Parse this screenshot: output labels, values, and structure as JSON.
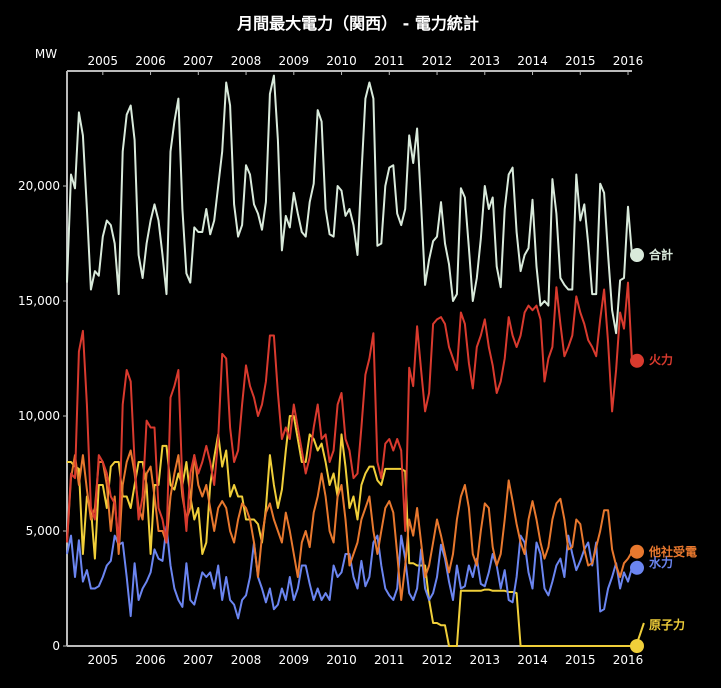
{
  "chart_data": {
    "type": "line",
    "title": "月間最大電力（関西） - 電力統計",
    "ylabel": "MW",
    "xlabel": "",
    "ylim": [
      0,
      25000
    ],
    "start_month": "2004-04",
    "frequency": "monthly",
    "x_ticks": [
      "2005",
      "2006",
      "2007",
      "2008",
      "2009",
      "2010",
      "2011",
      "2012",
      "2013",
      "2014",
      "2015",
      "2016"
    ],
    "y_ticks": [
      0,
      5000,
      10000,
      15000,
      20000
    ],
    "y_tick_labels": [
      "0",
      "5,000",
      "10,000",
      "15,000",
      "20,000"
    ],
    "grid": false,
    "legend_placement": "line-end labels at right",
    "series": [
      {
        "name": "合計",
        "color": "#d9eadb",
        "values_thousands": [
          15.8,
          20.5,
          19.9,
          23.2,
          22.2,
          19.0,
          15.5,
          16.3,
          16.1,
          17.8,
          18.5,
          18.3,
          17.5,
          15.3,
          21.5,
          23.1,
          23.5,
          22.0,
          17.0,
          16.0,
          17.5,
          18.5,
          19.2,
          18.5,
          17.0,
          15.3,
          21.5,
          22.8,
          23.8,
          19.0,
          16.2,
          15.8,
          18.2,
          18.0,
          18.0,
          19.0,
          17.9,
          18.5,
          20.0,
          21.5,
          24.5,
          23.5,
          19.2,
          17.8,
          18.3,
          20.9,
          20.5,
          19.2,
          18.8,
          18.1,
          19.3,
          24.0,
          24.8,
          22.0,
          17.2,
          18.7,
          18.2,
          19.7,
          18.8,
          18.0,
          17.8,
          19.3,
          20.1,
          23.3,
          22.8,
          19.0,
          17.9,
          17.8,
          20.0,
          19.8,
          18.7,
          19.0,
          18.3,
          17.0,
          20.5,
          23.8,
          24.5,
          23.8,
          17.4,
          17.5,
          20.0,
          20.8,
          20.9,
          18.8,
          18.3,
          19.0,
          22.2,
          21.0,
          22.5,
          19.2,
          15.7,
          16.8,
          17.6,
          17.8,
          19.3,
          17.5,
          16.6,
          15.0,
          15.3,
          19.9,
          19.5,
          17.3,
          15.0,
          16.0,
          17.7,
          20.0,
          19.0,
          19.5,
          16.5,
          15.6,
          19.0,
          20.5,
          20.8,
          18.0,
          16.3,
          17.0,
          17.3,
          19.4,
          16.5,
          14.8,
          15.0,
          14.8,
          20.3,
          18.8,
          16.0,
          15.7,
          15.5,
          15.5,
          20.5,
          18.5,
          19.2,
          17.5,
          15.3,
          15.3,
          20.1,
          19.7,
          17.0,
          14.6,
          13.6,
          15.9,
          16.0,
          19.1,
          17.0
        ]
      },
      {
        "name": "火力",
        "color": "#d93a2e",
        "values_thousands": [
          4.5,
          7.5,
          7.3,
          12.8,
          13.7,
          10.5,
          6.0,
          5.5,
          8.3,
          8.0,
          7.5,
          6.5,
          6.2,
          4.5,
          10.5,
          12.0,
          11.5,
          8.0,
          5.5,
          6.5,
          9.8,
          9.5,
          9.5,
          6.0,
          5.5,
          4.5,
          10.8,
          11.3,
          12.0,
          7.0,
          5.0,
          7.5,
          8.3,
          7.5,
          8.0,
          8.7,
          8.0,
          7.0,
          9.0,
          12.7,
          12.5,
          9.5,
          8.0,
          8.5,
          10.5,
          12.2,
          11.3,
          10.8,
          10.0,
          10.5,
          11.5,
          13.5,
          13.5,
          11.0,
          9.0,
          9.5,
          9.0,
          10.5,
          9.5,
          8.5,
          7.5,
          8.2,
          9.5,
          10.5,
          9.0,
          9.2,
          8.0,
          8.5,
          10.5,
          11.0,
          9.0,
          8.5,
          7.3,
          7.5,
          9.5,
          11.8,
          12.5,
          13.6,
          8.0,
          7.3,
          8.8,
          9.0,
          8.5,
          9.0,
          8.5,
          5.0,
          12.1,
          11.3,
          13.9,
          12.0,
          10.2,
          11.0,
          14.0,
          14.2,
          14.3,
          14.0,
          13.0,
          12.5,
          12.0,
          14.5,
          14.0,
          12.3,
          11.2,
          13.0,
          13.5,
          14.2,
          13.0,
          12.2,
          11.0,
          11.5,
          12.5,
          14.3,
          13.5,
          13.0,
          13.5,
          14.5,
          14.8,
          14.6,
          14.8,
          14.2,
          11.5,
          12.5,
          13.0,
          15.6,
          14.0,
          12.6,
          13.0,
          13.5,
          15.2,
          14.5,
          14.0,
          13.3,
          13.0,
          12.6,
          14.2,
          15.5,
          13.2,
          10.2,
          12.0,
          14.5,
          13.8,
          15.8,
          12.4
        ]
      },
      {
        "name": "他社受電",
        "color": "#e8782e",
        "values_thousands": [
          4.5,
          7.3,
          8.3,
          7.0,
          8.3,
          6.8,
          5.5,
          6.0,
          8.0,
          8.0,
          7.0,
          5.0,
          6.5,
          4.0,
          7.0,
          8.0,
          8.5,
          7.5,
          6.0,
          5.5,
          7.5,
          7.8,
          6.5,
          5.0,
          5.0,
          4.5,
          6.5,
          7.5,
          8.3,
          6.5,
          5.5,
          6.0,
          8.3,
          7.0,
          6.5,
          7.0,
          6.0,
          5.0,
          6.0,
          6.3,
          6.0,
          5.0,
          4.5,
          5.5,
          6.2,
          6.0,
          5.5,
          4.5,
          3.0,
          4.8,
          5.8,
          6.2,
          5.5,
          5.0,
          4.5,
          5.8,
          5.0,
          4.0,
          3.0,
          4.5,
          5.0,
          4.3,
          5.8,
          6.5,
          7.5,
          6.5,
          5.0,
          4.5,
          6.5,
          7.0,
          5.5,
          3.5,
          4.0,
          4.5,
          5.5,
          6.0,
          6.5,
          5.0,
          4.0,
          5.0,
          6.0,
          6.3,
          5.8,
          4.0,
          2.0,
          3.5,
          5.5,
          4.8,
          6.0,
          4.5,
          3.0,
          3.5,
          4.5,
          5.5,
          4.8,
          4.0,
          3.2,
          4.0,
          5.5,
          6.5,
          7.0,
          6.0,
          4.0,
          3.5,
          5.0,
          6.2,
          6.0,
          4.3,
          3.5,
          4.0,
          5.5,
          7.2,
          6.3,
          5.3,
          4.5,
          4.0,
          5.5,
          6.3,
          5.5,
          4.5,
          3.8,
          4.3,
          5.5,
          6.2,
          6.4,
          5.5,
          4.2,
          4.3,
          5.5,
          5.3,
          4.2,
          3.5,
          3.6,
          4.3,
          5.0,
          5.9,
          5.9,
          4.2,
          3.5,
          3.0,
          3.6,
          3.8,
          4.1
        ]
      },
      {
        "name": "水力",
        "color": "#6b85f0",
        "values_thousands": [
          4.0,
          4.8,
          3.0,
          4.6,
          2.8,
          3.3,
          2.5,
          2.5,
          2.6,
          3.0,
          3.5,
          3.7,
          4.8,
          4.4,
          4.5,
          3.0,
          1.3,
          3.6,
          2.0,
          2.5,
          2.8,
          3.2,
          4.2,
          3.8,
          3.7,
          5.2,
          3.5,
          2.5,
          2.0,
          1.7,
          3.6,
          2.0,
          1.8,
          2.5,
          3.2,
          3.0,
          3.2,
          2.5,
          3.5,
          2.0,
          3.0,
          2.0,
          1.8,
          1.2,
          2.0,
          2.2,
          3.0,
          4.5,
          3.0,
          2.5,
          1.9,
          2.5,
          1.6,
          1.8,
          2.5,
          2.0,
          3.0,
          2.0,
          2.5,
          3.5,
          3.5,
          2.7,
          2.0,
          2.5,
          2.0,
          2.3,
          2.0,
          3.5,
          3.0,
          3.2,
          4.0,
          4.0,
          3.0,
          2.5,
          3.7,
          2.6,
          3.0,
          4.5,
          4.8,
          3.5,
          2.5,
          2.2,
          2.0,
          2.5,
          4.8,
          3.8,
          2.3,
          2.0,
          2.5,
          4.2,
          2.5,
          2.0,
          2.3,
          3.0,
          4.4,
          3.8,
          2.8,
          2.0,
          3.5,
          2.5,
          2.6,
          3.5,
          3.0,
          3.8,
          2.7,
          2.6,
          3.2,
          4.0,
          3.5,
          2.5,
          3.3,
          2.0,
          1.9,
          3.0,
          4.8,
          4.5,
          3.2,
          2.5,
          4.5,
          4.0,
          2.5,
          2.2,
          2.8,
          3.5,
          3.8,
          3.0,
          4.8,
          4.0,
          3.3,
          3.7,
          4.2,
          4.5,
          3.5,
          4.5,
          1.5,
          1.6,
          2.5,
          3.0,
          3.6,
          2.5,
          3.2,
          2.8,
          3.4
        ]
      },
      {
        "name": "原子力",
        "color": "#f0cf3a",
        "values_thousands": [
          8.0,
          8.0,
          7.8,
          7.7,
          4.0,
          6.5,
          6.0,
          3.8,
          7.0,
          7.0,
          6.0,
          7.8,
          8.0,
          8.0,
          6.5,
          6.5,
          6.0,
          7.0,
          8.0,
          8.0,
          7.0,
          4.0,
          7.0,
          7.0,
          8.7,
          8.7,
          7.0,
          6.8,
          7.5,
          7.0,
          8.0,
          6.5,
          5.5,
          6.0,
          4.0,
          4.5,
          7.0,
          8.2,
          9.2,
          7.8,
          8.5,
          6.5,
          7.0,
          6.5,
          6.5,
          5.5,
          5.5,
          5.5,
          5.3,
          4.5,
          6.0,
          8.3,
          7.0,
          6.0,
          6.8,
          8.5,
          10.0,
          10.0,
          9.0,
          8.0,
          8.0,
          9.2,
          9.0,
          8.5,
          8.8,
          8.0,
          7.0,
          7.5,
          6.5,
          9.2,
          7.8,
          6.0,
          6.5,
          5.5,
          7.0,
          7.5,
          7.8,
          7.8,
          7.2,
          7.0,
          7.7,
          7.7,
          7.7,
          7.7,
          7.7,
          7.6,
          3.6,
          3.6,
          3.5,
          3.5,
          3.5,
          2.0,
          1.0,
          1.0,
          0.9,
          0.9,
          0,
          0,
          0,
          2.4,
          2.4,
          2.4,
          2.4,
          2.4,
          2.4,
          2.45,
          2.45,
          2.4,
          2.4,
          2.4,
          2.4,
          2.35,
          2.35,
          2.3,
          0,
          0,
          0,
          0,
          0,
          0,
          0,
          0,
          0,
          0,
          0,
          0,
          0,
          0,
          0,
          0,
          0,
          0,
          0,
          0,
          0,
          0,
          0,
          0,
          0,
          0,
          0,
          0,
          0,
          0,
          0.5,
          1.0
        ]
      }
    ]
  }
}
